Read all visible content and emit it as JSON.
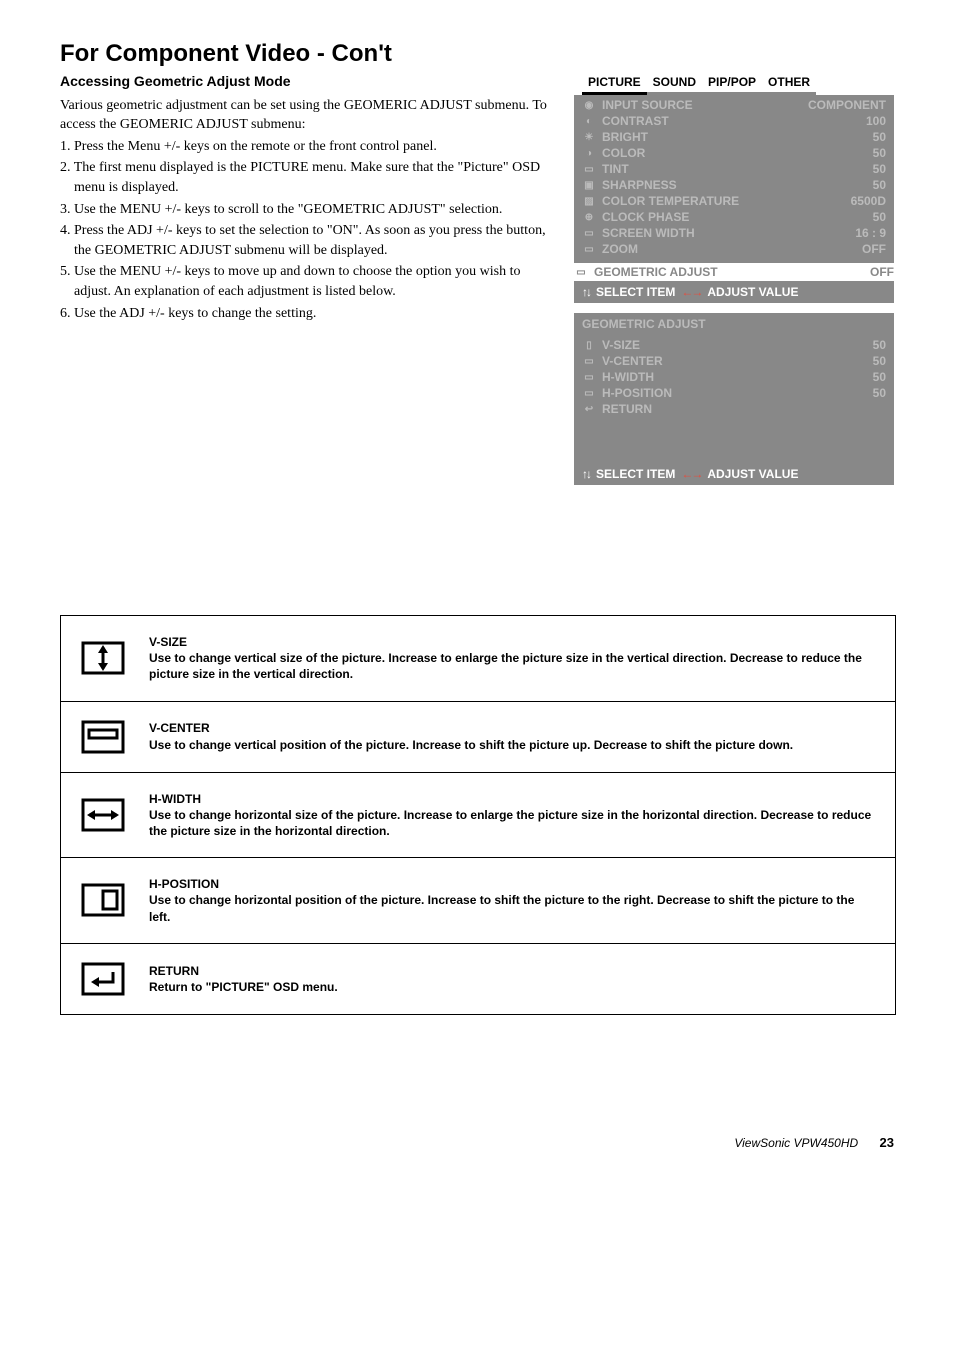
{
  "title": "For Component Video - Con't",
  "subtitle": "Accessing Geometric Adjust Mode",
  "intro": "Various geometric adjustment can be set using the GEOMERIC ADJUST submenu.  To access the GEOMERIC ADJUST submenu:",
  "steps": [
    "1. Press the Menu +/- keys on the remote or the front control panel.",
    "2. The first menu displayed is the PICTURE menu.  Make sure that the \"Picture\" OSD menu is displayed.",
    "3. Use the MENU +/- keys to scroll to the \"GEOMETRIC ADJUST\" selection.",
    "4. Press the ADJ +/- keys to set the selection to \"ON\".  As soon as you press the button, the GEOMETRIC ADJUST submenu will be displayed.",
    "5. Use the MENU +/- keys to move up and down to choose the option you wish to adjust.  An explanation of each adjustment is listed below.",
    "6. Use the ADJ +/- keys to change the setting."
  ],
  "osd1": {
    "tabs": [
      "PICTURE",
      "SOUND",
      "PIP/POP",
      "OTHER"
    ],
    "active_tab": 0,
    "rows": [
      {
        "label": "INPUT  SOURCE",
        "value": "COMPONENT"
      },
      {
        "label": "CONTRAST",
        "value": "100"
      },
      {
        "label": "BRIGHT",
        "value": "50"
      },
      {
        "label": "COLOR",
        "value": "50"
      },
      {
        "label": "TINT",
        "value": "50"
      },
      {
        "label": "SHARPNESS",
        "value": "50"
      },
      {
        "label": "COLOR  TEMPERATURE",
        "value": "6500D"
      },
      {
        "label": "CLOCK  PHASE",
        "value": "50"
      },
      {
        "label": "SCREEN  WIDTH",
        "value": "16 : 9"
      },
      {
        "label": "ZOOM",
        "value": "OFF"
      }
    ],
    "highlight": {
      "label": "GEOMETRIC ADJUST",
      "value": "OFF"
    },
    "footer_left": "SELECT  ITEM",
    "footer_right": "ADJUST  VALUE"
  },
  "osd2": {
    "header": "GEOMETRIC ADJUST",
    "rows": [
      {
        "label": "V-SIZE",
        "value": "50"
      },
      {
        "label": "V-CENTER",
        "value": "50"
      },
      {
        "label": "H-WIDTH",
        "value": "50"
      },
      {
        "label": "H-POSITION",
        "value": "50"
      },
      {
        "label": "RETURN",
        "value": ""
      }
    ],
    "footer_left": "SELECT  ITEM",
    "footer_right": "ADJUST  VALUE"
  },
  "descriptions": [
    {
      "title": "V-SIZE",
      "text": "Use to change vertical size of the picture.  Increase to enlarge the picture size in the vertical direction.  Decrease to reduce the picture size in the vertical direction."
    },
    {
      "title": "V-CENTER",
      "text": "Use to change vertical position of the picture.  Increase to shift the picture up.  Decrease to shift the picture down."
    },
    {
      "title": "H-WIDTH",
      "text": "Use to change horizontal size of the picture.  Increase to enlarge the picture size in the horizontal direction.  Decrease to reduce the picture size in the horizontal direction."
    },
    {
      "title": "H-POSITION",
      "text": "Use to change horizontal position of the picture.  Increase to shift the picture to the right.  Decrease to shift the picture to the left."
    },
    {
      "title": "RETURN",
      "text": "Return to \"PICTURE\" OSD menu."
    }
  ],
  "footer_model": "ViewSonic  VPW450HD",
  "footer_page": "23"
}
